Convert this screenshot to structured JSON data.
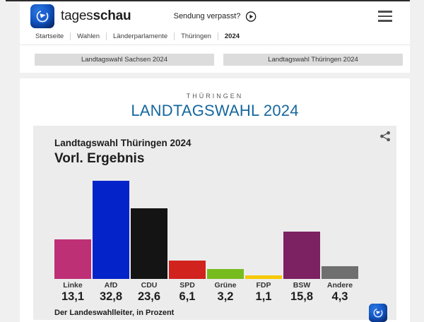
{
  "header": {
    "brand_regular": "tages",
    "brand_bold": "schau",
    "sendung_label": "Sendung verpasst?"
  },
  "breadcrumb": [
    "Startseite",
    "Wahlen",
    "Länderparlamente",
    "Thüringen",
    "2024"
  ],
  "tabs": {
    "sachsen": "Landtagswahl Sachsen 2024",
    "thueringen": "Landtagswahl Thüringen 2024"
  },
  "main": {
    "kicker": "THÜRINGEN",
    "title": "LANDTAGSWAHL 2024"
  },
  "chart_data": {
    "type": "bar",
    "title": "Landtagswahl Thüringen 2024",
    "subtitle": "Vorl. Ergebnis",
    "categories": [
      "Linke",
      "AfD",
      "CDU",
      "SPD",
      "Grüne",
      "FDP",
      "BSW",
      "Andere"
    ],
    "values": [
      13.1,
      32.8,
      23.6,
      6.1,
      3.2,
      1.1,
      15.8,
      4.3
    ],
    "value_labels": [
      "13,1",
      "32,8",
      "23,6",
      "6,1",
      "3,2",
      "1,1",
      "15,8",
      "4,3"
    ],
    "bar_colors": [
      "#bd3075",
      "#0423c8",
      "#141414",
      "#d2221e",
      "#77bc1f",
      "#f6c800",
      "#7c2161",
      "#6f6f6f"
    ],
    "ylim": [
      0,
      35
    ],
    "unit": "Prozent",
    "grid": false,
    "legend": "none",
    "source": "Der Landeswahlleiter, in Prozent"
  },
  "theme": {
    "page_bg": "#f0f0f0",
    "card_bg": "#ececec",
    "title_blue": "#15679e",
    "tab_bg": "#dcdcdc"
  }
}
